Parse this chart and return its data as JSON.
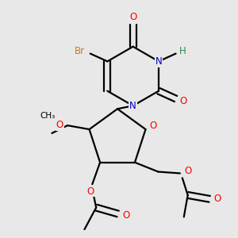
{
  "background_color": "#e8e8e8",
  "atom_colors": {
    "C": "#000000",
    "N": "#0000cd",
    "O": "#ff0000",
    "Br": "#cc7722",
    "H": "#2e8b57"
  },
  "figsize": [
    3.0,
    3.0
  ],
  "dpi": 100
}
